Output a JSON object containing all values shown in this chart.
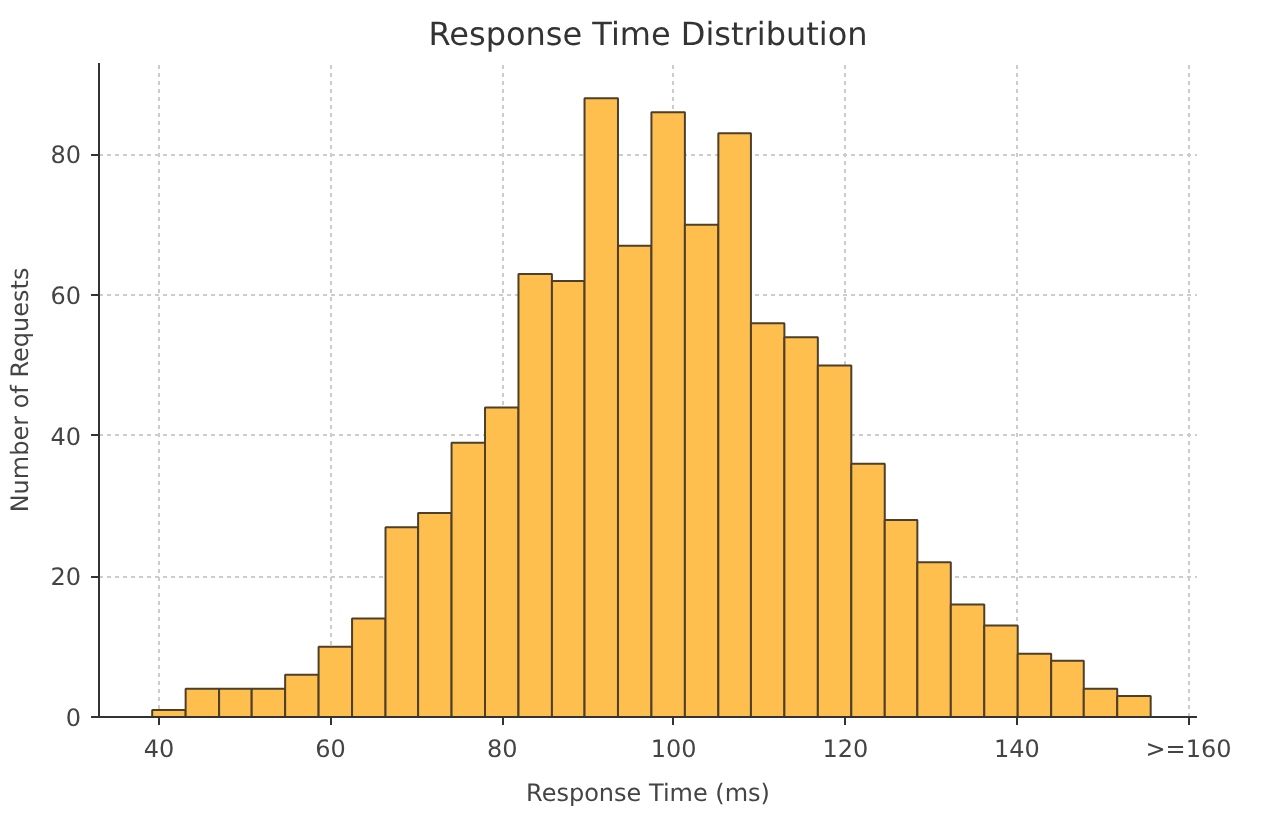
{
  "chart_data": {
    "type": "histogram",
    "title": "Response Time Distribution",
    "xlabel": "Response Time (ms)",
    "ylabel": "Number of Requests",
    "bins": [
      39.2,
      43.1,
      47.0,
      50.8,
      54.7,
      58.6,
      62.5,
      66.4,
      70.2,
      74.1,
      78.0,
      81.9,
      85.8,
      89.6,
      93.5,
      97.4,
      101.3,
      105.2,
      109.0,
      112.9,
      116.8,
      120.7,
      124.6,
      128.4,
      132.3,
      136.2,
      140.1,
      144.0,
      147.8,
      151.7,
      155.6
    ],
    "values": [
      1,
      4,
      4,
      4,
      6,
      10,
      14,
      27,
      29,
      39,
      44,
      63,
      62,
      88,
      67,
      86,
      70,
      83,
      56,
      54,
      50,
      36,
      28,
      22,
      16,
      13,
      9,
      8,
      4,
      3
    ],
    "color": "#ffbf4f",
    "xlim": [
      33,
      161
    ],
    "xticks": [
      40,
      60,
      80,
      100,
      120,
      140,
      {
        "value": 160,
        "label": ">=160"
      }
    ],
    "ylim": [
      0,
      93
    ],
    "yticks": [
      0,
      20,
      40,
      60,
      80
    ],
    "grid": true
  }
}
